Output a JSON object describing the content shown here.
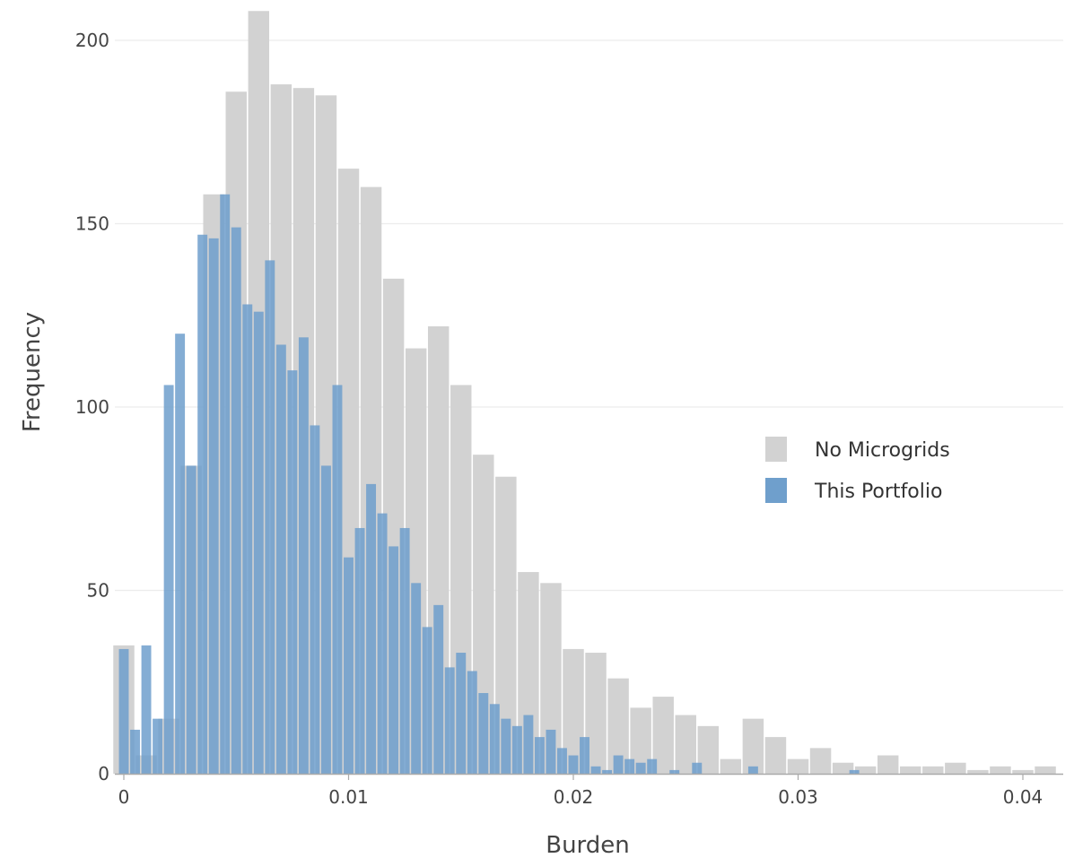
{
  "chart_data": {
    "type": "bar",
    "title": "",
    "xlabel": "Burden",
    "ylabel": "Frequency",
    "xlim": [
      -0.0007,
      0.0415
    ],
    "ylim": [
      0,
      208
    ],
    "x_ticks": [
      0,
      0.01,
      0.02,
      0.03,
      0.04
    ],
    "x_tick_labels": [
      "0",
      "0.01",
      "0.02",
      "0.03",
      "0.04"
    ],
    "y_ticks": [
      0,
      50,
      100,
      150,
      200
    ],
    "y_tick_labels": [
      "0",
      "50",
      "100",
      "150",
      "200"
    ],
    "grid": true,
    "legend_position": "right",
    "series": [
      {
        "name": "No Microgrids",
        "color": "#d2d2d2",
        "bin_width": 0.001,
        "bin_start": -0.0005,
        "values": [
          35,
          5,
          15,
          84,
          158,
          186,
          208,
          188,
          187,
          185,
          165,
          160,
          135,
          116,
          122,
          106,
          87,
          81,
          55,
          52,
          34,
          33,
          26,
          18,
          21,
          16,
          13,
          4,
          15,
          10,
          4,
          7,
          3,
          2,
          5,
          2,
          2,
          3,
          1,
          2,
          1,
          2
        ]
      },
      {
        "name": "This Portfolio",
        "color": "#6f9fcc",
        "bin_width": 0.0005,
        "bin_start": -0.00025,
        "values": [
          34,
          12,
          35,
          15,
          106,
          120,
          84,
          147,
          146,
          158,
          149,
          128,
          126,
          140,
          117,
          110,
          119,
          95,
          84,
          106,
          59,
          67,
          79,
          71,
          62,
          67,
          52,
          40,
          46,
          29,
          33,
          28,
          22,
          19,
          15,
          13,
          16,
          10,
          12,
          7,
          5,
          10,
          2,
          1,
          5,
          4,
          3,
          4,
          0,
          1,
          0,
          3,
          0,
          0,
          0,
          0,
          2,
          0,
          0,
          0,
          0,
          0,
          0,
          0,
          0,
          1
        ]
      }
    ]
  }
}
